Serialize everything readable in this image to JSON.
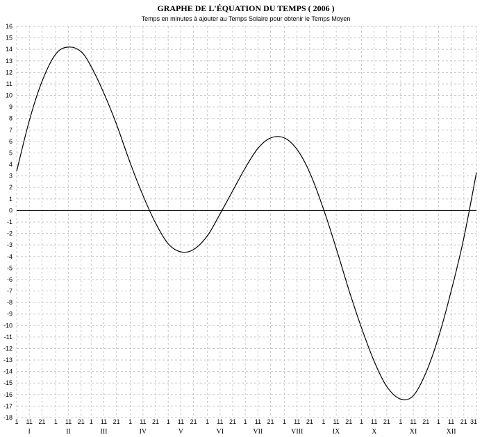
{
  "chart_data": {
    "type": "line",
    "title": "GRAPHE DE L'ÉQUATION DU TEMPS ( 2006 )",
    "subtitle": "Temps en minutes à ajouter au Temps Solaire pour obtenir le Temps Moyen",
    "xlabel": "",
    "ylabel": "",
    "ylim": [
      -18,
      16
    ],
    "y_ticks": [
      16,
      15,
      14,
      13,
      12,
      11,
      10,
      9,
      8,
      7,
      6,
      5,
      4,
      3,
      2,
      1,
      0,
      -1,
      -2,
      -3,
      -4,
      -5,
      -6,
      -7,
      -8,
      -9,
      -10,
      -11,
      -12,
      -13,
      -14,
      -15,
      -16,
      -17,
      -18
    ],
    "x_tick_labels": [
      "1",
      "11",
      "21",
      "1",
      "11",
      "21",
      "1",
      "11",
      "21",
      "1",
      "11",
      "21",
      "1",
      "11",
      "21",
      "1",
      "11",
      "21",
      "1",
      "11",
      "21",
      "1",
      "11",
      "21",
      "1",
      "11",
      "21",
      "1",
      "11",
      "21",
      "1",
      "11",
      "21",
      "1",
      "11",
      "21",
      "31"
    ],
    "months": [
      "I",
      "II",
      "III",
      "IV",
      "V",
      "VI",
      "VII",
      "VIII",
      "IX",
      "X",
      "XI",
      "XII"
    ],
    "grid": true,
    "series": [
      {
        "x": [
          1,
          11,
          21,
          32,
          42,
          52,
          60,
          70,
          80,
          91,
          101,
          111,
          121,
          131,
          141,
          152,
          162,
          172,
          182,
          192,
          202,
          213,
          223,
          233,
          244,
          254,
          264,
          274,
          284,
          294,
          305,
          315,
          325,
          335,
          345,
          355,
          365
        ],
        "y": [
          3.4,
          7.8,
          11.2,
          13.6,
          14.2,
          13.8,
          12.5,
          10.2,
          7.5,
          4.1,
          1.3,
          -1.1,
          -2.9,
          -3.6,
          -3.4,
          -2.2,
          -0.3,
          1.7,
          3.7,
          5.4,
          6.3,
          6.3,
          5.3,
          3.3,
          0.1,
          -3.3,
          -6.9,
          -10.2,
          -13.1,
          -15.3,
          -16.4,
          -16.1,
          -14.1,
          -11.0,
          -7.0,
          -2.4,
          3.3
        ]
      }
    ]
  }
}
